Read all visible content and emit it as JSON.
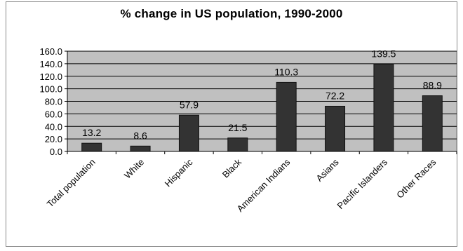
{
  "chart_data": {
    "type": "bar",
    "title": "% change in US population, 1990-2000",
    "categories": [
      "Total population",
      "White",
      "Hispanic",
      "Black",
      "American Indians",
      "Asians",
      "Pacific Islanders",
      "Other Races"
    ],
    "values": [
      13.2,
      8.6,
      57.9,
      21.5,
      110.3,
      72.2,
      139.5,
      88.9
    ],
    "value_labels": [
      "13.2",
      "8.6",
      "57.9",
      "21.5",
      "110.3",
      "72.2",
      "139.5",
      "88.9"
    ],
    "yticks": [
      "0.0",
      "20.0",
      "40.0",
      "60.0",
      "80.0",
      "100.0",
      "120.0",
      "140.0",
      "160.0"
    ],
    "ylim": [
      0,
      160
    ],
    "xlabel": "",
    "ylabel": "",
    "grid": true,
    "legend": "none",
    "colors": {
      "bar": "#333333",
      "plot_background": "#c0c0c0",
      "gridline": "#000000"
    }
  }
}
